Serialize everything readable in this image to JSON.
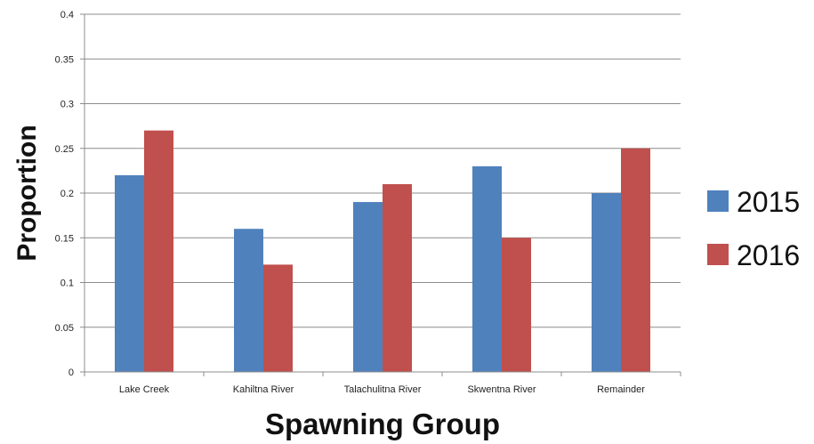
{
  "chart_data": {
    "type": "bar",
    "title": "",
    "xlabel": "Spawning Group",
    "ylabel": "Proportion",
    "ylim": [
      0,
      0.4
    ],
    "yticks": [
      0,
      0.05,
      0.1,
      0.15,
      0.2,
      0.25,
      0.3,
      0.35,
      0.4
    ],
    "ytick_labels": [
      "0",
      "0.05",
      "0.1",
      "0.15",
      "0.2",
      "0.25",
      "0.3",
      "0.35",
      "0.4"
    ],
    "categories": [
      "Lake Creek",
      "Kahiltna River",
      "Talachulitna River",
      "Skwentna River",
      "Remainder"
    ],
    "series": [
      {
        "name": "2015",
        "color": "#4F81BD",
        "values": [
          0.22,
          0.16,
          0.19,
          0.23,
          0.2
        ]
      },
      {
        "name": "2016",
        "color": "#C0504D",
        "values": [
          0.27,
          0.12,
          0.21,
          0.15,
          0.25
        ]
      }
    ],
    "grid": true,
    "legend_position": "right"
  }
}
